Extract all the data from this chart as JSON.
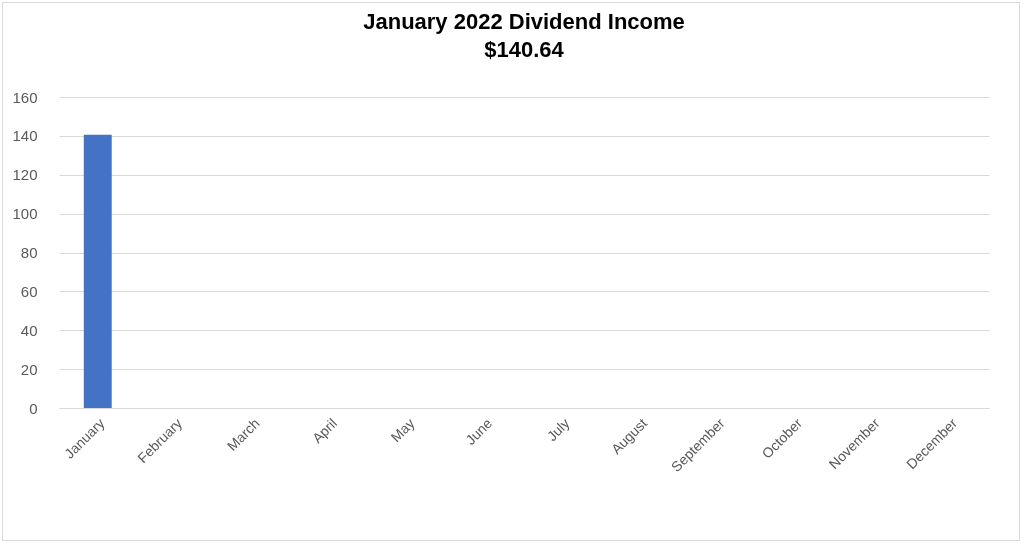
{
  "chart_data": {
    "type": "bar",
    "title": "January 2022 Dividend Income",
    "subtitle": "$140.64",
    "categories": [
      "January",
      "February",
      "March",
      "April",
      "May",
      "June",
      "July",
      "August",
      "September",
      "October",
      "November",
      "December"
    ],
    "values": [
      140.64,
      null,
      null,
      null,
      null,
      null,
      null,
      null,
      null,
      null,
      null,
      null
    ],
    "color": "#4472c4",
    "ylim": [
      0,
      160
    ],
    "yticks": [
      0,
      20,
      40,
      60,
      80,
      100,
      120,
      140,
      160
    ],
    "grid": "y"
  }
}
